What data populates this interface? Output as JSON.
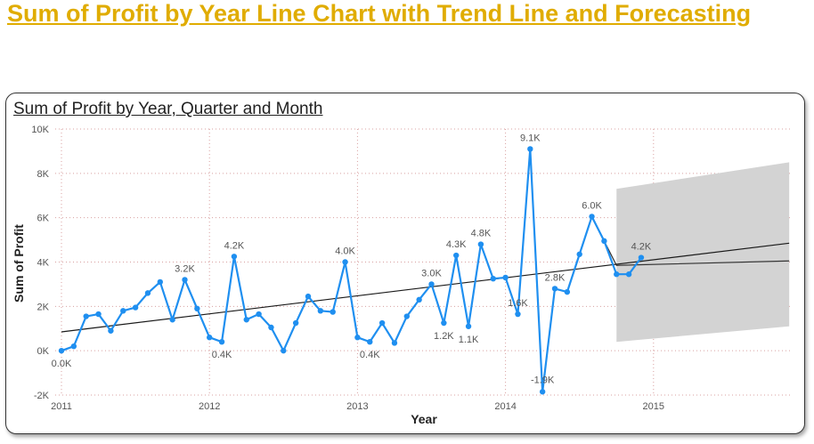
{
  "page": {
    "heading": "Sum of Profit by Year Line Chart with Trend Line and Forecasting"
  },
  "chart_data": {
    "type": "line",
    "title": "Sum of Profit by Year, Quarter and Month",
    "xlabel": "Year",
    "ylabel": "Sum of Profit",
    "ylim": [
      -2000,
      10000
    ],
    "y_ticks": [
      {
        "value": -2000,
        "label": "-2K"
      },
      {
        "value": 0,
        "label": "0K"
      },
      {
        "value": 2000,
        "label": "2K"
      },
      {
        "value": 4000,
        "label": "4K"
      },
      {
        "value": 6000,
        "label": "6K"
      },
      {
        "value": 8000,
        "label": "8K"
      },
      {
        "value": 10000,
        "label": "10K"
      }
    ],
    "x_ticks": [
      "2011",
      "2012",
      "2013",
      "2014",
      "2015"
    ],
    "grid": true,
    "line_color": "#1f8ff0",
    "series": [
      {
        "values": [
          0,
          200,
          1550,
          1650,
          900,
          1800,
          1950,
          2600,
          3100,
          1400,
          3200,
          1900,
          600,
          400,
          4250,
          1400,
          1650,
          1050,
          0,
          1250,
          2450,
          1800,
          1750,
          4000,
          600,
          400,
          1250,
          350,
          1550,
          2300,
          3000,
          1250,
          4300,
          1100,
          4800,
          3250,
          3300,
          1650,
          9100,
          2800,
          2650,
          4350,
          6050,
          4950,
          3450,
          3450,
          4200,
          -1850
        ]
      }
    ],
    "months": [
      0,
      1,
      2,
      3,
      4,
      5,
      6,
      7,
      8,
      9,
      10,
      11,
      12,
      13,
      14,
      15,
      16,
      17,
      18,
      19,
      20,
      21,
      22,
      23,
      24,
      25,
      26,
      27,
      28,
      29,
      30,
      31,
      32,
      33,
      34,
      35,
      36,
      37,
      38,
      40,
      41,
      42,
      43,
      44,
      45,
      46,
      47,
      39
    ],
    "data_labels": [
      {
        "index": 0,
        "text": "0.0K"
      },
      {
        "index": 10,
        "text": "3.2K"
      },
      {
        "index": 13,
        "text": "0.4K"
      },
      {
        "index": 14,
        "text": "4.2K"
      },
      {
        "index": 23,
        "text": "4.0K"
      },
      {
        "index": 25,
        "text": "0.4K"
      },
      {
        "index": 30,
        "text": "3.0K"
      },
      {
        "index": 31,
        "text": "1.2K"
      },
      {
        "index": 32,
        "text": "4.3K"
      },
      {
        "index": 33,
        "text": "1.1K"
      },
      {
        "index": 34,
        "text": "4.8K"
      },
      {
        "index": 37,
        "text": "1.6K"
      },
      {
        "index": 38,
        "text": "9.1K"
      },
      {
        "index": 47,
        "text": "-1.9K"
      },
      {
        "index": 39,
        "text": "2.8K"
      },
      {
        "index": 42,
        "text": "6.0K"
      },
      {
        "index": 46,
        "text": "4.2K"
      }
    ],
    "trend_line": {
      "start": 850,
      "end": 4850
    },
    "forecast": {
      "line": [
        4950,
        3850,
        4050
      ],
      "band_upper_start": 7300,
      "band_upper_end": 8500,
      "band_lower_start": 400,
      "band_lower_end": 1100
    }
  }
}
